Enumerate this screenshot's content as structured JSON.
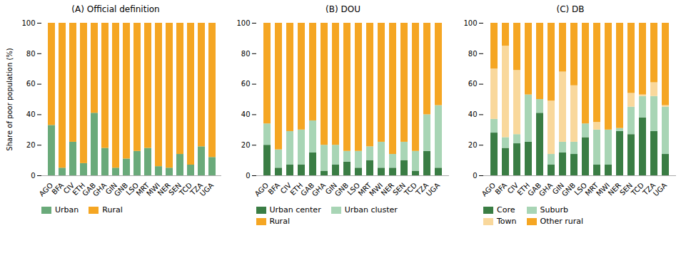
{
  "chart_data": [
    {
      "type": "bar",
      "stacked": true,
      "title": "(A) Official definition",
      "ylabel": "Share of poor population (%)",
      "categories": [
        "AGO",
        "BFA",
        "CIV",
        "ETH",
        "GAB",
        "GHA",
        "GIN",
        "GNB",
        "LSO",
        "MRT",
        "MWI",
        "NER",
        "SEN",
        "TCD",
        "TZA",
        "UGA"
      ],
      "series": [
        {
          "name": "Urban",
          "color": "#6aaa7a",
          "values": [
            33,
            5,
            22,
            8,
            41,
            18,
            5,
            11,
            16,
            18,
            6,
            5,
            14,
            7,
            19,
            12
          ]
        },
        {
          "name": "Rural",
          "color": "#f5a623",
          "values": [
            67,
            95,
            78,
            92,
            59,
            82,
            95,
            89,
            84,
            82,
            94,
            95,
            86,
            93,
            81,
            88
          ]
        }
      ],
      "ylim": [
        0,
        100
      ],
      "yticks": [
        0,
        20,
        40,
        60,
        80,
        100
      ],
      "grid": false,
      "legend": "bottom"
    },
    {
      "type": "bar",
      "stacked": true,
      "title": "(B) DOU",
      "categories": [
        "AGO",
        "BFA",
        "CIV",
        "ETH",
        "GAB",
        "GHA",
        "GIN",
        "GNB",
        "LSO",
        "MRT",
        "MWI",
        "NER",
        "SEN",
        "TCD",
        "TZA",
        "UGA"
      ],
      "series": [
        {
          "name": "Urban center",
          "color": "#3a7d44",
          "values": [
            20,
            5,
            7,
            7,
            15,
            3,
            7,
            9,
            5,
            10,
            5,
            5,
            10,
            3,
            16,
            5
          ]
        },
        {
          "name": "Urban cluster",
          "color": "#a8d5b5",
          "values": [
            14,
            12,
            22,
            23,
            21,
            17,
            13,
            7,
            11,
            9,
            17,
            9,
            12,
            13,
            24,
            41
          ]
        },
        {
          "name": "Rural",
          "color": "#f5a623",
          "values": [
            66,
            83,
            71,
            70,
            64,
            80,
            80,
            84,
            84,
            81,
            78,
            86,
            78,
            84,
            60,
            54
          ]
        }
      ],
      "ylim": [
        0,
        100
      ],
      "yticks": [
        0,
        20,
        40,
        60,
        80,
        100
      ],
      "grid": false,
      "legend": "bottom"
    },
    {
      "type": "bar",
      "stacked": true,
      "title": "(C) DB",
      "categories": [
        "AGO",
        "BFA",
        "CIV",
        "ETH",
        "GAB",
        "GHA",
        "GIN",
        "GNB",
        "LSO",
        "MRT",
        "MWI",
        "NER",
        "SEN",
        "TCD",
        "TZA",
        "UGA"
      ],
      "series": [
        {
          "name": "Core",
          "color": "#3a7d44",
          "values": [
            28,
            18,
            21,
            22,
            41,
            7,
            15,
            14,
            25,
            7,
            7,
            29,
            27,
            38,
            29,
            14
          ]
        },
        {
          "name": "Suburb",
          "color": "#a8d5b5",
          "values": [
            9,
            7,
            6,
            31,
            9,
            7,
            7,
            8,
            9,
            23,
            23,
            2,
            18,
            14,
            23,
            31
          ]
        },
        {
          "name": "Town",
          "color": "#f9d89c",
          "values": [
            33,
            60,
            42,
            0,
            0,
            35,
            46,
            37,
            0,
            5,
            0,
            0,
            9,
            1,
            9,
            1
          ]
        },
        {
          "name": "Other rural",
          "color": "#f5a623",
          "values": [
            30,
            15,
            31,
            47,
            50,
            51,
            32,
            41,
            66,
            65,
            70,
            69,
            46,
            47,
            39,
            54
          ]
        }
      ],
      "ylim": [
        0,
        100
      ],
      "yticks": [
        0,
        20,
        40,
        60,
        80,
        100
      ],
      "grid": false,
      "legend": "bottom"
    }
  ]
}
